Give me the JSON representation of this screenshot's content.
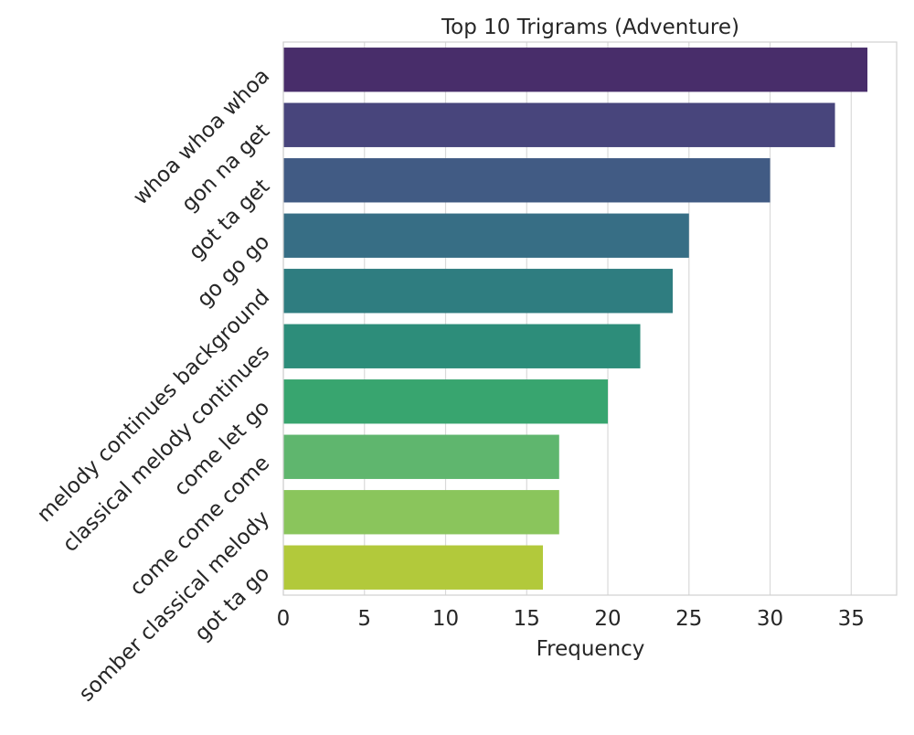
{
  "chart_data": {
    "type": "bar",
    "orientation": "horizontal",
    "title": "Top 10 Trigrams (Adventure)",
    "xlabel": "Frequency",
    "ylabel": "",
    "categories": [
      "whoa whoa whoa",
      "gon na get",
      "got ta get",
      "go go go",
      "melody continues background",
      "classical melody continues",
      "come let go",
      "come come come",
      "somber classical melody",
      "got ta go"
    ],
    "values": [
      36,
      34,
      30,
      25,
      24,
      22,
      20,
      17,
      17,
      16
    ],
    "xlim": [
      0,
      37.8
    ],
    "xticks": [
      0,
      5,
      10,
      15,
      20,
      25,
      30,
      35
    ],
    "grid": true,
    "colors": [
      "#482d6a",
      "#48457c",
      "#415b84",
      "#376e85",
      "#2f7d80",
      "#2d8d7a",
      "#38a56f",
      "#5fb66e",
      "#8ac55c",
      "#b2c93b"
    ]
  }
}
